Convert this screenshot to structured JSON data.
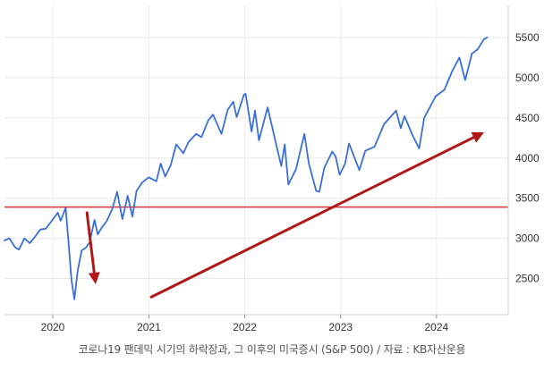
{
  "caption": "코로나19 팬데믹 시기의 하락장과, 그 이후의 미국증시 (S&P 500) / 자료 : KB자산운용",
  "chart_data": {
    "type": "line",
    "x_ticks": [
      "2020",
      "2021",
      "2022",
      "2023",
      "2024"
    ],
    "y_ticks": [
      2500,
      3000,
      3500,
      4000,
      4500,
      5000,
      5500
    ],
    "xlim": [
      "2019-07-01",
      "2024-09-30"
    ],
    "ylim": [
      2050,
      5900
    ],
    "grid": true,
    "series": [
      {
        "color": "#3b6fd8",
        "points": [
          [
            "2019-07-01",
            2975
          ],
          [
            "2019-07-20",
            3000
          ],
          [
            "2019-08-10",
            2890
          ],
          [
            "2019-08-25",
            2860
          ],
          [
            "2019-09-15",
            3000
          ],
          [
            "2019-10-05",
            2940
          ],
          [
            "2019-10-25",
            3020
          ],
          [
            "2019-11-15",
            3110
          ],
          [
            "2019-12-05",
            3120
          ],
          [
            "2019-12-31",
            3230
          ],
          [
            "2020-01-20",
            3320
          ],
          [
            "2020-01-31",
            3220
          ],
          [
            "2020-02-19",
            3380
          ],
          [
            "2020-03-01",
            2950
          ],
          [
            "2020-03-12",
            2480
          ],
          [
            "2020-03-23",
            2240
          ],
          [
            "2020-04-05",
            2600
          ],
          [
            "2020-04-20",
            2850
          ],
          [
            "2020-05-05",
            2880
          ],
          [
            "2020-05-20",
            2950
          ],
          [
            "2020-06-08",
            3230
          ],
          [
            "2020-06-20",
            3050
          ],
          [
            "2020-07-05",
            3130
          ],
          [
            "2020-07-25",
            3220
          ],
          [
            "2020-08-15",
            3370
          ],
          [
            "2020-09-02",
            3580
          ],
          [
            "2020-09-22",
            3240
          ],
          [
            "2020-10-12",
            3530
          ],
          [
            "2020-10-30",
            3270
          ],
          [
            "2020-11-15",
            3590
          ],
          [
            "2020-12-05",
            3690
          ],
          [
            "2020-12-31",
            3760
          ],
          [
            "2021-01-29",
            3710
          ],
          [
            "2021-02-15",
            3930
          ],
          [
            "2021-03-04",
            3770
          ],
          [
            "2021-03-25",
            3910
          ],
          [
            "2021-04-15",
            4170
          ],
          [
            "2021-05-12",
            4060
          ],
          [
            "2021-06-01",
            4200
          ],
          [
            "2021-06-30",
            4300
          ],
          [
            "2021-07-20",
            4260
          ],
          [
            "2021-08-15",
            4470
          ],
          [
            "2021-09-02",
            4540
          ],
          [
            "2021-10-04",
            4300
          ],
          [
            "2021-10-28",
            4600
          ],
          [
            "2021-11-18",
            4700
          ],
          [
            "2021-12-01",
            4510
          ],
          [
            "2021-12-29",
            4790
          ],
          [
            "2022-01-04",
            4800
          ],
          [
            "2022-01-27",
            4330
          ],
          [
            "2022-02-09",
            4590
          ],
          [
            "2022-02-24",
            4220
          ],
          [
            "2022-03-29",
            4630
          ],
          [
            "2022-04-15",
            4390
          ],
          [
            "2022-05-02",
            4150
          ],
          [
            "2022-05-20",
            3900
          ],
          [
            "2022-06-02",
            4170
          ],
          [
            "2022-06-16",
            3670
          ],
          [
            "2022-07-15",
            3860
          ],
          [
            "2022-08-16",
            4300
          ],
          [
            "2022-09-02",
            3930
          ],
          [
            "2022-09-30",
            3590
          ],
          [
            "2022-10-12",
            3580
          ],
          [
            "2022-10-31",
            3880
          ],
          [
            "2022-11-30",
            4080
          ],
          [
            "2022-12-13",
            4020
          ],
          [
            "2022-12-28",
            3790
          ],
          [
            "2023-01-18",
            3930
          ],
          [
            "2023-02-02",
            4180
          ],
          [
            "2023-03-13",
            3850
          ],
          [
            "2023-04-05",
            4090
          ],
          [
            "2023-05-10",
            4140
          ],
          [
            "2023-06-15",
            4420
          ],
          [
            "2023-07-31",
            4590
          ],
          [
            "2023-08-18",
            4370
          ],
          [
            "2023-09-01",
            4520
          ],
          [
            "2023-10-05",
            4260
          ],
          [
            "2023-10-27",
            4120
          ],
          [
            "2023-11-15",
            4500
          ],
          [
            "2023-12-29",
            4770
          ],
          [
            "2024-01-31",
            4850
          ],
          [
            "2024-02-28",
            5070
          ],
          [
            "2024-03-28",
            5250
          ],
          [
            "2024-04-19",
            4970
          ],
          [
            "2024-05-15",
            5300
          ],
          [
            "2024-06-05",
            5350
          ],
          [
            "2024-06-30",
            5480
          ],
          [
            "2024-07-12",
            5500
          ]
        ]
      }
    ],
    "reference_line": {
      "y": 3390,
      "color": "#d93030"
    },
    "arrows": [
      {
        "from": [
          "2020-05-10",
          3320
        ],
        "to": [
          "2020-06-12",
          2430
        ],
        "color": "#b01818"
      },
      {
        "from": [
          "2021-01-10",
          2270
        ],
        "to": [
          "2024-06-30",
          4320
        ],
        "color": "#b01818"
      }
    ]
  }
}
